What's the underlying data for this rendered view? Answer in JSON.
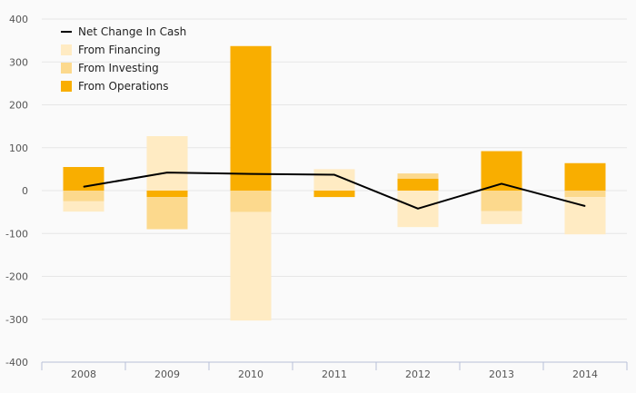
{
  "chart_data": {
    "type": "bar",
    "subtype": "stacked-bar-with-line",
    "categories": [
      "2008",
      "2009",
      "2010",
      "2011",
      "2012",
      "2013",
      "2014"
    ],
    "y_ticks": [
      400,
      300,
      200,
      100,
      0,
      -100,
      -200,
      -300,
      -400
    ],
    "ylim": [
      -400,
      400
    ],
    "grid": true,
    "legend_position": "top-left",
    "series": [
      {
        "name": "From Operations",
        "kind": "bar",
        "color": "#f9ae00",
        "values": [
          55,
          -15,
          337,
          -15,
          28,
          92,
          64
        ]
      },
      {
        "name": "From Investing",
        "kind": "bar",
        "color": "#fcd98d",
        "values": [
          -25,
          -75,
          -50,
          0,
          12,
          -48,
          -15
        ]
      },
      {
        "name": "From Financing",
        "kind": "bar",
        "color": "#ffebc3",
        "values": [
          -24,
          127,
          -253,
          50,
          -85,
          -30,
          -87
        ]
      },
      {
        "name": "Net Change In Cash",
        "kind": "line",
        "color": "#000000",
        "values": [
          9,
          42,
          39,
          37,
          -42,
          16,
          -36
        ]
      }
    ],
    "legend_order": [
      "Net Change In Cash",
      "From Financing",
      "From Investing",
      "From Operations"
    ]
  }
}
